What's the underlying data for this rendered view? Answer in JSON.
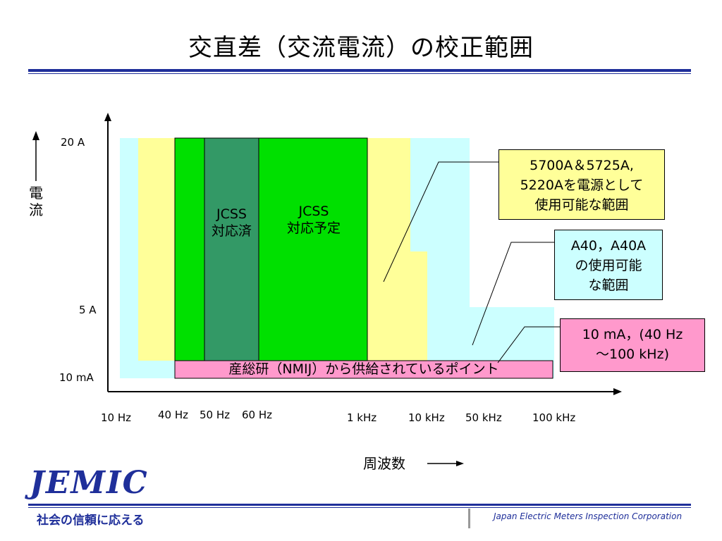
{
  "title": "交直差（交流電流）の校正範囲",
  "y_axis": {
    "label": "電流",
    "ticks": [
      "20 A",
      "5 A",
      "10 mA"
    ]
  },
  "x_axis": {
    "label": "周波数",
    "ticks": [
      "10 Hz",
      "40 Hz",
      "50 Hz",
      "60 Hz",
      "1 kHz",
      "10 kHz",
      "50 kHz",
      "100 kHz"
    ]
  },
  "zones": {
    "jcss_done": "JCSS\n対応済",
    "jcss_planned": "JCSS\n対応予定",
    "nmij_points": "産総研（NMIJ）から供給されているポイント"
  },
  "callouts": {
    "yellow": "5700A＆5725A,\n5220Aを電源として\n使用可能な範囲",
    "cyan": "A40，A40A\nの使用可能\nな範囲",
    "pink": "10 mA，(40 Hz\n～100 kHz)"
  },
  "colors": {
    "cyan": "#ccffff",
    "yellow": "#ffff99",
    "green": "#00e000",
    "dark_green": "#339966",
    "pink": "#ff99cc",
    "navy": "#1f2f9a"
  },
  "footer": {
    "logo": "JEMIC",
    "slogan": "社会の信頼に応える",
    "org": "Japan Electric Meters Inspection Corporation"
  }
}
